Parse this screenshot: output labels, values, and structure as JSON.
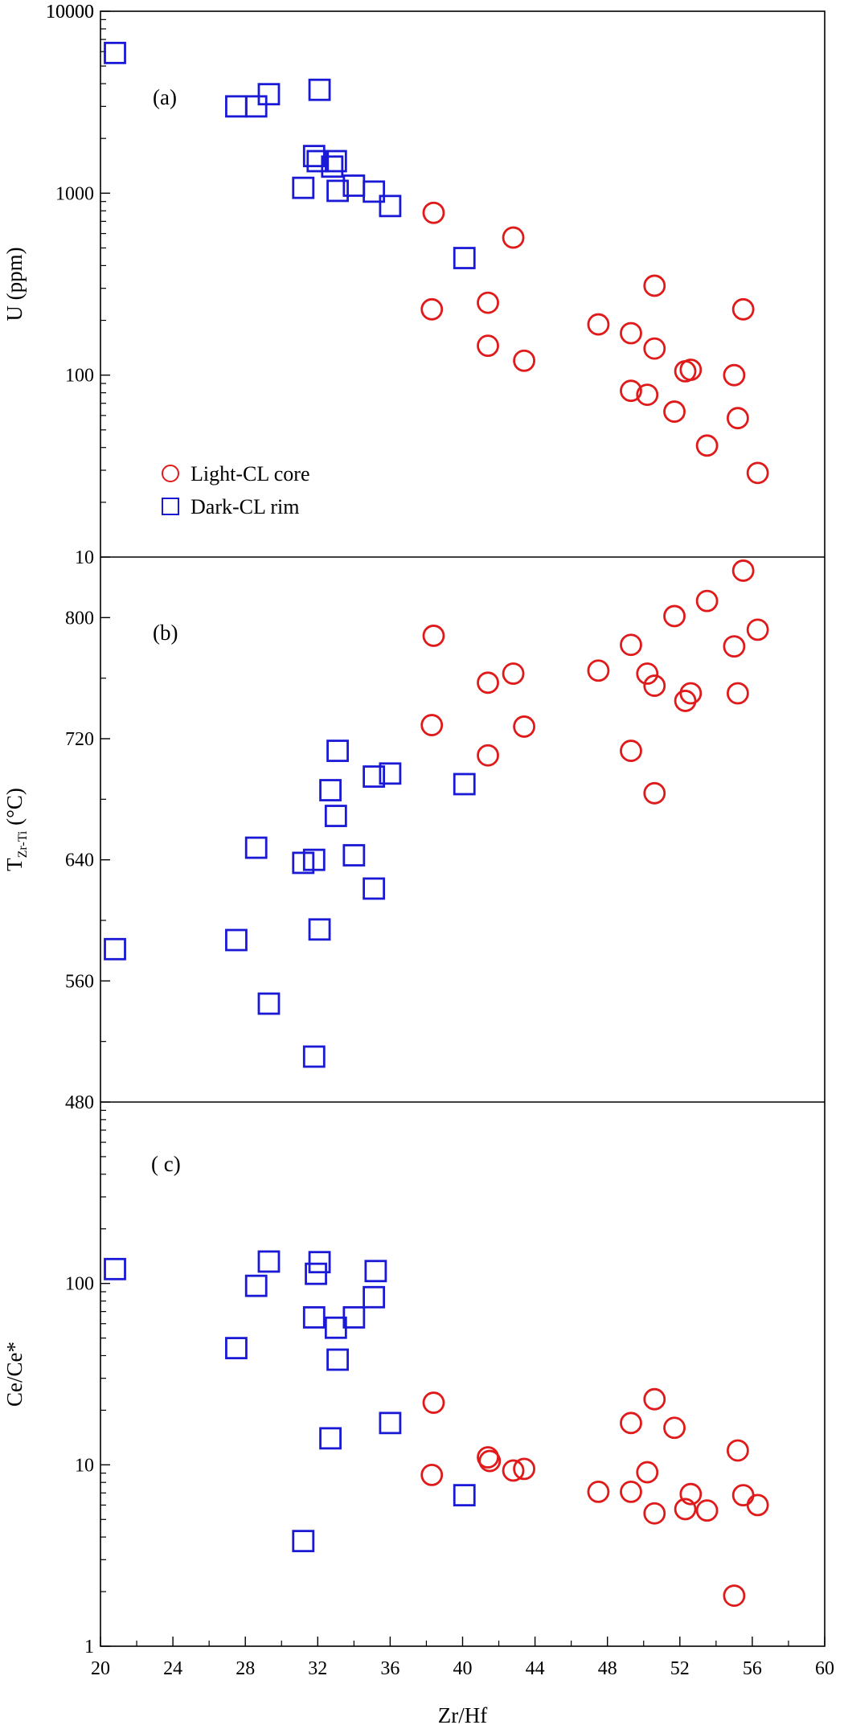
{
  "chart_data": {
    "type": "scatter",
    "xlabel": "Zr/Hf",
    "xlim": [
      20,
      60
    ],
    "xticks": [
      20,
      24,
      28,
      32,
      36,
      40,
      44,
      48,
      52,
      56,
      60
    ],
    "legend": {
      "placement": "bottom-left of panel (a)"
    },
    "series_styles": [
      {
        "name": "Light-CL core",
        "marker": "circle",
        "color": "#e01a1a"
      },
      {
        "name": "Dark-CL rim",
        "marker": "square",
        "color": "#1a1ad6"
      }
    ],
    "panels": [
      {
        "label": "(a)",
        "ylabel": "U (ppm)",
        "yscale": "log",
        "ylim": [
          10,
          10000
        ],
        "yticks": [
          10,
          100,
          1000,
          10000
        ],
        "series": [
          {
            "name": "Light-CL core",
            "points": [
              [
                38.4,
                780
              ],
              [
                42.8,
                570
              ],
              [
                38.3,
                230
              ],
              [
                41.4,
                250
              ],
              [
                41.4,
                145
              ],
              [
                43.4,
                120
              ],
              [
                47.5,
                190
              ],
              [
                49.3,
                170
              ],
              [
                50.6,
                310
              ],
              [
                50.6,
                140
              ],
              [
                49.3,
                82
              ],
              [
                50.2,
                78
              ],
              [
                51.7,
                63
              ],
              [
                52.3,
                105
              ],
              [
                52.6,
                107
              ],
              [
                53.5,
                41
              ],
              [
                55.0,
                100
              ],
              [
                55.2,
                58
              ],
              [
                55.5,
                230
              ],
              [
                56.3,
                29
              ]
            ]
          },
          {
            "name": "Dark-CL rim",
            "points": [
              [
                20.8,
                5900
              ],
              [
                27.5,
                3000
              ],
              [
                28.6,
                3000
              ],
              [
                29.3,
                3500
              ],
              [
                32.1,
                3700
              ],
              [
                31.8,
                1600
              ],
              [
                32.0,
                1500
              ],
              [
                32.8,
                1400
              ],
              [
                33.0,
                1500
              ],
              [
                31.2,
                1070
              ],
              [
                33.1,
                1030
              ],
              [
                34.0,
                1100
              ],
              [
                35.1,
                1020
              ],
              [
                36.0,
                850
              ],
              [
                40.1,
                440
              ]
            ]
          }
        ]
      },
      {
        "label": "(b)",
        "ylabel": "T",
        "ylabel_sub": "Zr-Ti",
        "ylabel_tail": " (°C)",
        "yscale": "linear",
        "ylim": [
          480,
          840
        ],
        "yticks": [
          480,
          560,
          640,
          720,
          800
        ],
        "series": [
          {
            "name": "Light-CL core",
            "points": [
              [
                38.4,
                788
              ],
              [
                38.3,
                729
              ],
              [
                41.4,
                757
              ],
              [
                41.4,
                709
              ],
              [
                42.8,
                763
              ],
              [
                43.4,
                728
              ],
              [
                47.5,
                765
              ],
              [
                49.3,
                782
              ],
              [
                49.3,
                712
              ],
              [
                50.2,
                763
              ],
              [
                50.6,
                755
              ],
              [
                50.6,
                684
              ],
              [
                51.7,
                801
              ],
              [
                52.3,
                745
              ],
              [
                52.6,
                750
              ],
              [
                53.5,
                811
              ],
              [
                55.0,
                781
              ],
              [
                55.2,
                750
              ],
              [
                55.5,
                831
              ],
              [
                56.3,
                792
              ]
            ]
          },
          {
            "name": "Dark-CL rim",
            "points": [
              [
                20.8,
                581
              ],
              [
                27.5,
                587
              ],
              [
                28.6,
                648
              ],
              [
                29.3,
                545
              ],
              [
                31.2,
                638
              ],
              [
                31.8,
                510
              ],
              [
                31.8,
                640
              ],
              [
                32.1,
                594
              ],
              [
                32.7,
                686
              ],
              [
                33.0,
                669
              ],
              [
                33.1,
                712
              ],
              [
                34.0,
                643
              ],
              [
                35.1,
                621
              ],
              [
                35.1,
                695
              ],
              [
                36.0,
                697
              ],
              [
                40.1,
                690
              ]
            ]
          }
        ]
      },
      {
        "label": "( c)",
        "ylabel": "Ce/Ce*",
        "yscale": "log",
        "ylim": [
          1,
          1000
        ],
        "yticks": [
          1,
          10,
          100
        ],
        "series": [
          {
            "name": "Light-CL core",
            "points": [
              [
                38.4,
                22
              ],
              [
                38.3,
                8.8
              ],
              [
                41.4,
                11
              ],
              [
                41.5,
                10.5
              ],
              [
                42.8,
                9.3
              ],
              [
                43.4,
                9.5
              ],
              [
                47.5,
                7.1
              ],
              [
                49.3,
                17
              ],
              [
                49.3,
                7.1
              ],
              [
                50.2,
                9.1
              ],
              [
                50.6,
                23
              ],
              [
                50.6,
                5.4
              ],
              [
                51.7,
                16
              ],
              [
                52.3,
                5.7
              ],
              [
                52.6,
                6.9
              ],
              [
                53.5,
                5.6
              ],
              [
                55.0,
                1.9
              ],
              [
                55.2,
                12
              ],
              [
                55.5,
                6.8
              ],
              [
                56.3,
                6.0
              ]
            ]
          },
          {
            "name": "Dark-CL rim",
            "points": [
              [
                20.8,
                120
              ],
              [
                27.5,
                44
              ],
              [
                28.6,
                97
              ],
              [
                29.3,
                132
              ],
              [
                31.2,
                3.8
              ],
              [
                31.8,
                65
              ],
              [
                31.9,
                113
              ],
              [
                32.1,
                131
              ],
              [
                32.7,
                14
              ],
              [
                33.0,
                57
              ],
              [
                33.1,
                38
              ],
              [
                34.0,
                65
              ],
              [
                35.1,
                84
              ],
              [
                35.2,
                117
              ],
              [
                36.0,
                17
              ],
              [
                40.1,
                6.8
              ]
            ]
          }
        ]
      }
    ]
  }
}
